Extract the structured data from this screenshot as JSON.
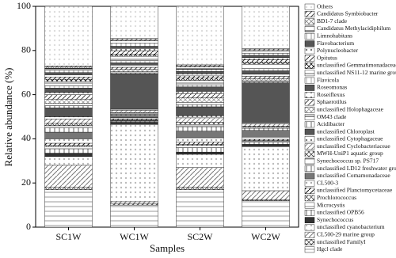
{
  "chart_data": {
    "type": "stacked_bar",
    "x_label": "Samples",
    "y_label": "Relative abundance (%)",
    "categories": [
      "SC1W",
      "WC1W",
      "SC2W",
      "WC2W"
    ],
    "ylim": [
      0,
      100
    ],
    "yticks": [
      0,
      20,
      40,
      60,
      80,
      100
    ],
    "series": [
      {
        "name": "Others",
        "color": "#dddddd",
        "values": [
          27,
          14.6,
          26.5,
          19.2
        ]
      },
      {
        "name": "Candidatus Symbiobacter",
        "color": "#444444",
        "values": [
          0.5,
          0.5,
          0.5,
          0.5
        ]
      },
      {
        "name": "BD1-7 clade",
        "color": "#888888",
        "values": [
          0.5,
          0.5,
          0.5,
          0.5
        ]
      },
      {
        "name": "Candidatus Methylacidiphilum",
        "color": "#222222",
        "values": [
          1,
          1,
          1,
          1
        ]
      },
      {
        "name": "Limnohabitans",
        "color": "#999999",
        "values": [
          1,
          1.5,
          1,
          1
        ]
      },
      {
        "name": "Flavobacterium",
        "color": "#555555",
        "values": [
          1,
          1,
          1,
          1
        ]
      },
      {
        "name": "Polynucleobacter",
        "color": "#777777",
        "values": [
          1,
          1,
          1,
          1
        ]
      },
      {
        "name": "Opitutus",
        "color": "#333333",
        "values": [
          1,
          1.5,
          1,
          1
        ]
      },
      {
        "name": "unclassified Gemmatimonadaceae",
        "color": "#111111",
        "values": [
          1,
          1,
          1,
          1
        ]
      },
      {
        "name": "unclassified NS11-12 marine group",
        "color": "#666666",
        "values": [
          2,
          2,
          2,
          2
        ]
      },
      {
        "name": "Flavicola",
        "color": "#aaaaaa",
        "values": [
          1,
          1,
          1,
          1
        ]
      },
      {
        "name": "Roseomonas",
        "color": "#555555",
        "values": [
          2,
          1,
          2,
          1.5
        ]
      },
      {
        "name": "Roseiflexus",
        "color": "#888888",
        "values": [
          1,
          1,
          1,
          1
        ]
      },
      {
        "name": "Sphaerotilus",
        "color": "#444444",
        "values": [
          2,
          1,
          2,
          1
        ]
      },
      {
        "name": "unclassified Holophagaceae",
        "color": "#999999",
        "values": [
          2,
          1,
          2,
          1
        ]
      },
      {
        "name": "OM43 clade",
        "color": "#222222",
        "values": [
          1,
          0.5,
          1,
          0.5
        ]
      },
      {
        "name": "Acidibacter",
        "color": "#666666",
        "values": [
          1,
          0.5,
          1,
          0.5
        ]
      },
      {
        "name": "unclassified Chloroplast",
        "color": "#555555",
        "values": [
          4,
          16,
          4,
          18
        ]
      },
      {
        "name": "unclassified Cytophagaceae",
        "color": "#777777",
        "values": [
          1,
          0.5,
          1,
          0.5
        ]
      },
      {
        "name": "unclassified Cyclobacteriaceae",
        "color": "#888888",
        "values": [
          2,
          1,
          2,
          1
        ]
      },
      {
        "name": "MWH-UniP1 aquatic group",
        "color": "#444444",
        "values": [
          1,
          0.3,
          1,
          0.5
        ]
      },
      {
        "name": "Synechococcus sp. PS717",
        "color": "#999999",
        "values": [
          1,
          0.5,
          1,
          0.5
        ]
      },
      {
        "name": "unclassified LD12 freshwater group",
        "color": "#666666",
        "values": [
          2,
          0.5,
          2,
          1
        ]
      },
      {
        "name": "unclassified Comamonadaceae",
        "color": "#777777",
        "values": [
          3,
          1,
          3,
          3
        ]
      },
      {
        "name": "CL500-3",
        "color": "#aaaaaa",
        "values": [
          2,
          0.5,
          2,
          1
        ]
      },
      {
        "name": "unclassified Planctomycetaceae",
        "color": "#111111",
        "values": [
          1,
          0.5,
          1,
          0.5
        ]
      },
      {
        "name": "Prochlorococcus",
        "color": "#555555",
        "values": [
          0.5,
          0.3,
          0.5,
          0.3
        ]
      },
      {
        "name": "Microcystis",
        "color": "#888888",
        "values": [
          1,
          0.3,
          1,
          0.5
        ]
      },
      {
        "name": "unclassified OPB56",
        "color": "#666666",
        "values": [
          2,
          0.5,
          2,
          1
        ]
      },
      {
        "name": "Synechococcus",
        "color": "#333333",
        "values": [
          1.5,
          1,
          1,
          1
        ]
      },
      {
        "name": "unclassified cyanobacterium",
        "color": "#bbbbbb",
        "values": [
          4,
          35,
          6,
          20
        ]
      },
      {
        "name": "CL500-29 marine group",
        "color": "#777777",
        "values": [
          10,
          1,
          9,
          4
        ]
      },
      {
        "name": "unclassified FamilyI",
        "color": "#444444",
        "values": [
          1,
          0.5,
          1,
          0.5
        ]
      },
      {
        "name": "Hgcl clade",
        "color": "#999999",
        "values": [
          17,
          10,
          17,
          12
        ]
      }
    ]
  }
}
